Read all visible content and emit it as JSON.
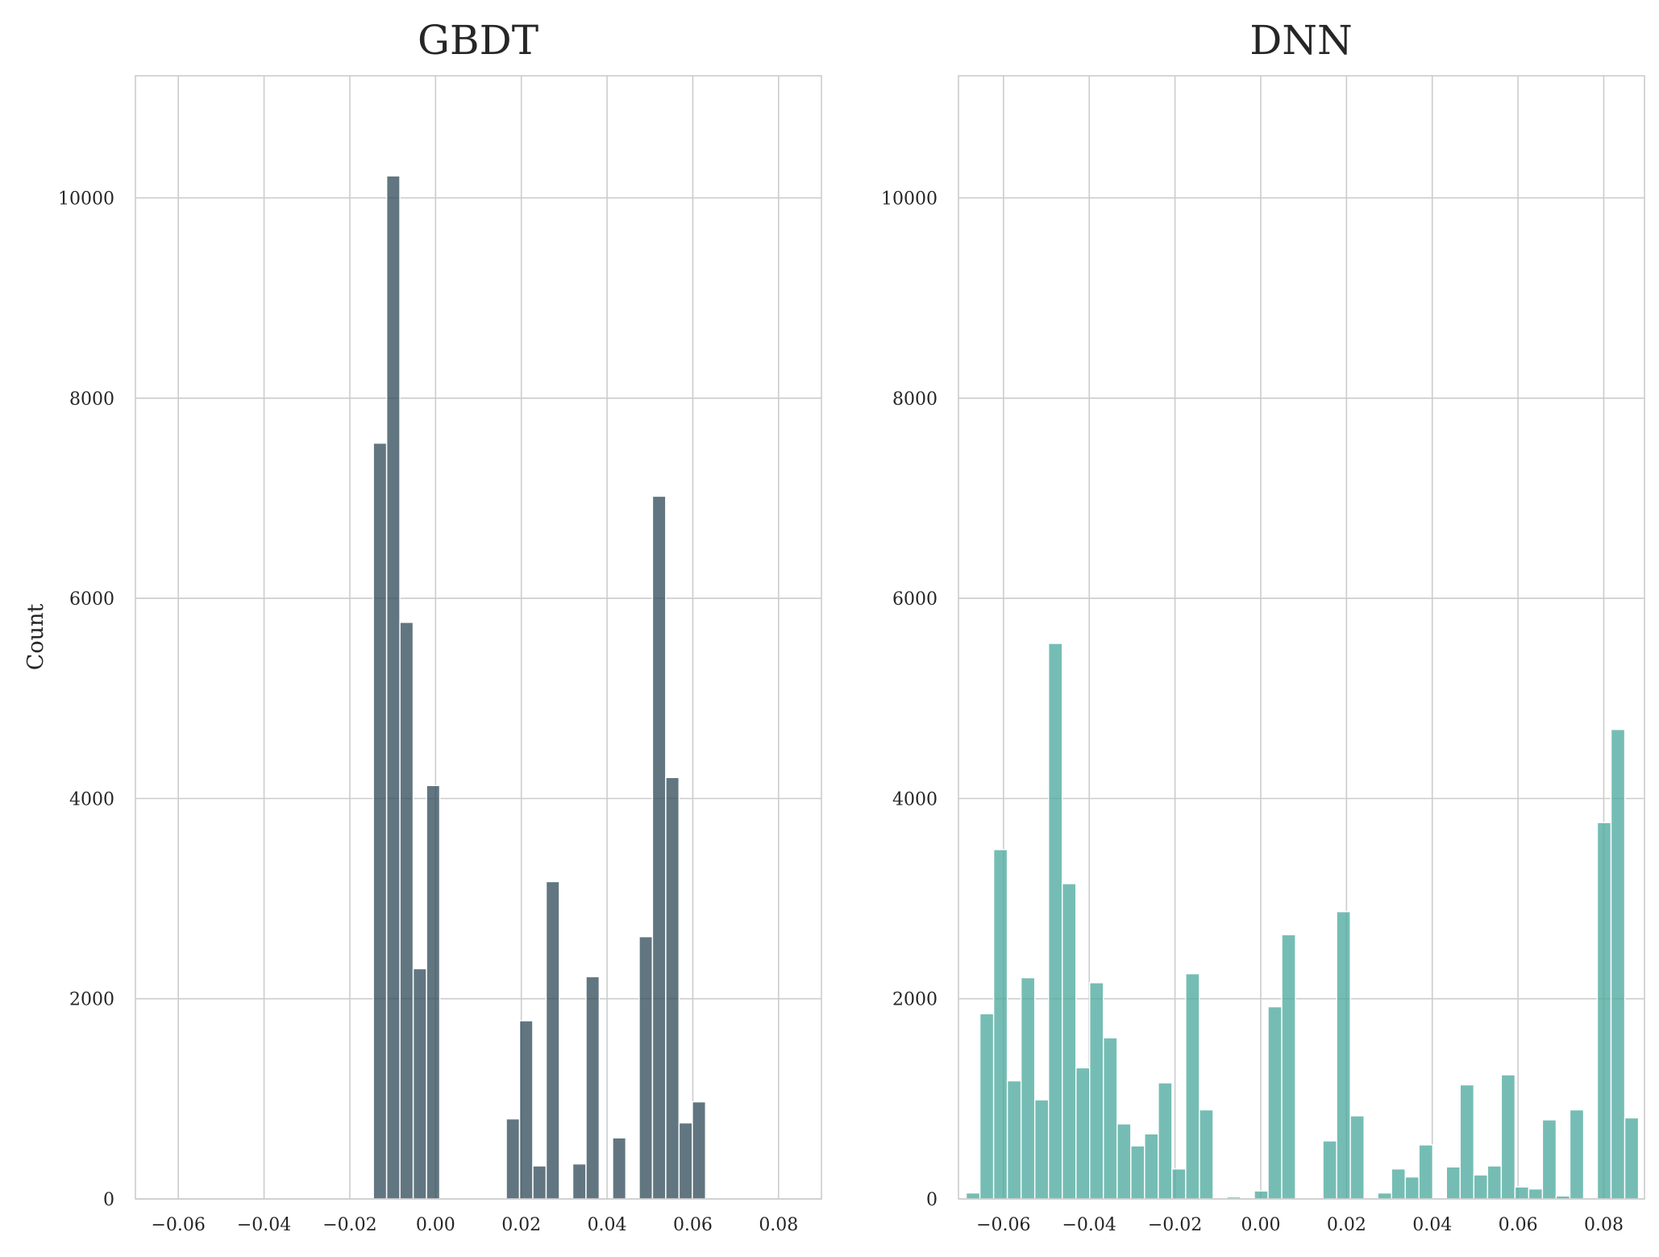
{
  "chart_data": [
    {
      "type": "bar",
      "title": "GBDT",
      "xlabel": "",
      "ylabel": "Count",
      "xlim": [
        -0.07,
        0.09
      ],
      "ylim": [
        0,
        11220
      ],
      "grid": true,
      "color": "#2f4b58",
      "bin_width": 0.00307,
      "xticks": [
        -0.06,
        -0.04,
        -0.02,
        0.0,
        0.02,
        0.04,
        0.06,
        0.08
      ],
      "xtick_labels": [
        "−0.06",
        "−0.04",
        "−0.02",
        "0.00",
        "0.02",
        "0.04",
        "0.06",
        "0.08"
      ],
      "yticks": [
        0,
        2000,
        4000,
        6000,
        8000,
        10000
      ],
      "ytick_labels": [
        "0",
        "2000",
        "4000",
        "6000",
        "8000",
        "10000"
      ],
      "bins": [
        {
          "x": -0.0145,
          "count": 7550
        },
        {
          "x": -0.0114,
          "count": 10220
        },
        {
          "x": -0.0083,
          "count": 5760
        },
        {
          "x": -0.0052,
          "count": 2300
        },
        {
          "x": -0.0021,
          "count": 4130
        },
        {
          "x": 0.001,
          "count": 0
        },
        {
          "x": 0.0041,
          "count": 0
        },
        {
          "x": 0.0072,
          "count": 0
        },
        {
          "x": 0.0103,
          "count": 0
        },
        {
          "x": 0.0134,
          "count": 0
        },
        {
          "x": 0.0165,
          "count": 800
        },
        {
          "x": 0.0196,
          "count": 1780
        },
        {
          "x": 0.0227,
          "count": 330
        },
        {
          "x": 0.0258,
          "count": 3170
        },
        {
          "x": 0.0289,
          "count": 0
        },
        {
          "x": 0.032,
          "count": 350
        },
        {
          "x": 0.0351,
          "count": 2220
        },
        {
          "x": 0.0382,
          "count": 0
        },
        {
          "x": 0.0413,
          "count": 610
        },
        {
          "x": 0.0444,
          "count": 0
        },
        {
          "x": 0.0475,
          "count": 2620
        },
        {
          "x": 0.0506,
          "count": 7020
        },
        {
          "x": 0.0537,
          "count": 4210
        },
        {
          "x": 0.0568,
          "count": 760
        },
        {
          "x": 0.0599,
          "count": 970
        }
      ]
    },
    {
      "type": "bar",
      "title": "DNN",
      "xlabel": "",
      "ylabel": "",
      "xlim": [
        -0.0705,
        0.0895
      ],
      "ylim": [
        0,
        11220
      ],
      "grid": true,
      "color": "#4aa89c",
      "bin_width": 0.0032,
      "xticks": [
        -0.06,
        -0.04,
        -0.02,
        0.0,
        0.02,
        0.04,
        0.06,
        0.08
      ],
      "xtick_labels": [
        "−0.06",
        "−0.04",
        "−0.02",
        "0.00",
        "0.02",
        "0.04",
        "0.06",
        "0.08"
      ],
      "yticks": [
        0,
        2000,
        4000,
        6000,
        8000,
        10000
      ],
      "ytick_labels": [
        "0",
        "2000",
        "4000",
        "6000",
        "8000",
        "10000"
      ],
      "bins": [
        {
          "x": -0.0687,
          "count": 60
        },
        {
          "x": -0.0655,
          "count": 1850
        },
        {
          "x": -0.0623,
          "count": 3490
        },
        {
          "x": -0.0591,
          "count": 1180
        },
        {
          "x": -0.0559,
          "count": 2210
        },
        {
          "x": -0.0527,
          "count": 990
        },
        {
          "x": -0.0495,
          "count": 5550
        },
        {
          "x": -0.0463,
          "count": 3150
        },
        {
          "x": -0.0431,
          "count": 1310
        },
        {
          "x": -0.0399,
          "count": 2160
        },
        {
          "x": -0.0367,
          "count": 1610
        },
        {
          "x": -0.0335,
          "count": 750
        },
        {
          "x": -0.0303,
          "count": 530
        },
        {
          "x": -0.0271,
          "count": 650
        },
        {
          "x": -0.0239,
          "count": 1160
        },
        {
          "x": -0.0207,
          "count": 300
        },
        {
          "x": -0.0175,
          "count": 2250
        },
        {
          "x": -0.0143,
          "count": 890
        },
        {
          "x": -0.0111,
          "count": 0
        },
        {
          "x": -0.0079,
          "count": 20
        },
        {
          "x": -0.0047,
          "count": 0
        },
        {
          "x": -0.0015,
          "count": 80
        },
        {
          "x": 0.0017,
          "count": 1920
        },
        {
          "x": 0.0049,
          "count": 2640
        },
        {
          "x": 0.0081,
          "count": 0
        },
        {
          "x": 0.0113,
          "count": 0
        },
        {
          "x": 0.0145,
          "count": 580
        },
        {
          "x": 0.0177,
          "count": 2870
        },
        {
          "x": 0.0209,
          "count": 830
        },
        {
          "x": 0.0241,
          "count": 0
        },
        {
          "x": 0.0273,
          "count": 60
        },
        {
          "x": 0.0305,
          "count": 300
        },
        {
          "x": 0.0337,
          "count": 220
        },
        {
          "x": 0.0369,
          "count": 540
        },
        {
          "x": 0.0401,
          "count": 0
        },
        {
          "x": 0.0433,
          "count": 320
        },
        {
          "x": 0.0465,
          "count": 1140
        },
        {
          "x": 0.0497,
          "count": 240
        },
        {
          "x": 0.0529,
          "count": 330
        },
        {
          "x": 0.0561,
          "count": 1240
        },
        {
          "x": 0.0593,
          "count": 120
        },
        {
          "x": 0.0625,
          "count": 100
        },
        {
          "x": 0.0657,
          "count": 790
        },
        {
          "x": 0.0689,
          "count": 30
        },
        {
          "x": 0.0721,
          "count": 890
        },
        {
          "x": 0.0753,
          "count": 0
        },
        {
          "x": 0.0785,
          "count": 3760
        },
        {
          "x": 0.0817,
          "count": 4690
        },
        {
          "x": 0.0849,
          "count": 810
        }
      ]
    }
  ]
}
